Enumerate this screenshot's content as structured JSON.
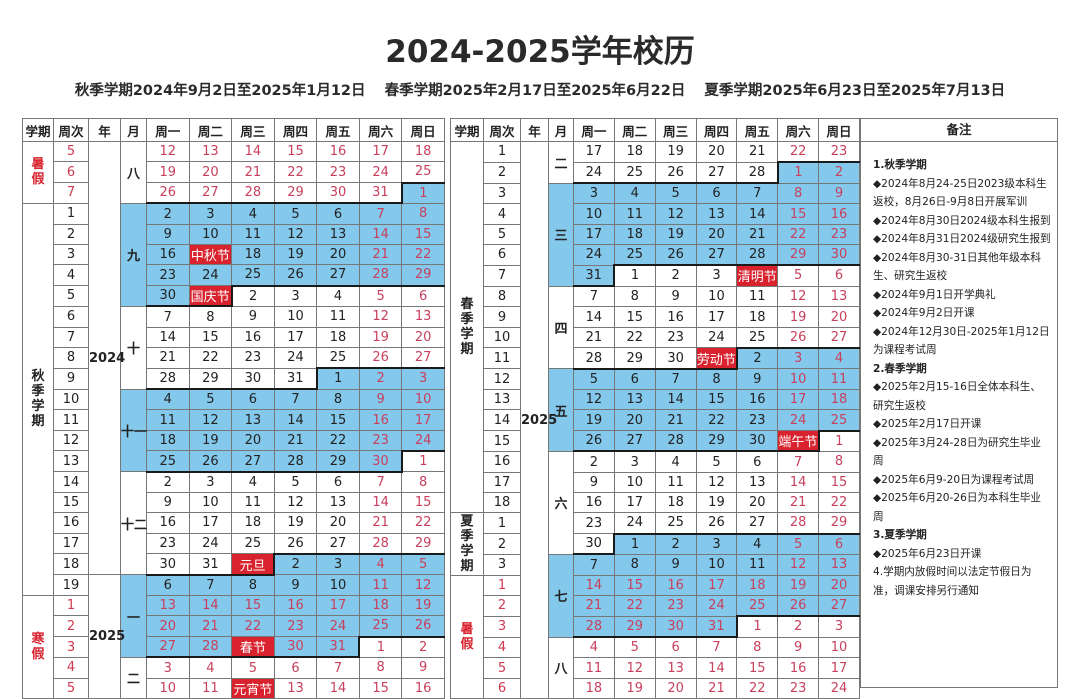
{
  "title": "2024-2025学年校历",
  "subtitle": [
    "秋季学期2024年9月2日至2025年1月12日",
    "春季学期2025年2月17日至2025年6月22日",
    "夏季学期2025年6月23日至2025年7月13日"
  ],
  "colors": {
    "shaded_month": "#84c8ec",
    "holiday": "#d8232f",
    "weekend_text": "#c8405c",
    "vacation_text": "#d03a50"
  },
  "headers": [
    "学期",
    "周次",
    "年",
    "月",
    "周一",
    "周二",
    "周三",
    "周四",
    "周五",
    "周六",
    "周日"
  ],
  "left_table": {
    "semesters": [
      {
        "label": "暑假",
        "rows": 3,
        "vacation": true
      },
      {
        "label": "秋季学期",
        "rows": 19,
        "vacation": false
      },
      {
        "label": "寒假",
        "rows": 5,
        "vacation": true
      }
    ],
    "years": [
      {
        "label": "2024",
        "rows": 21
      },
      {
        "label": "2025",
        "rows": 6
      }
    ],
    "months": [
      {
        "label": "八",
        "rows": 3,
        "shaded": false
      },
      {
        "label": "九",
        "rows": 5,
        "shaded": true
      },
      {
        "label": "十",
        "rows": 4,
        "shaded": false
      },
      {
        "label": "十一",
        "rows": 4,
        "shaded": true
      },
      {
        "label": "十二",
        "rows": 5,
        "shaded": false
      },
      {
        "label": "一",
        "rows": 4,
        "shaded": true
      },
      {
        "label": "二",
        "rows": 2,
        "shaded": false
      }
    ],
    "weeks": [
      {
        "week": "5",
        "vacation": true,
        "days": [
          12,
          13,
          14,
          15,
          16,
          17,
          18
        ]
      },
      {
        "week": "6",
        "vacation": true,
        "days": [
          19,
          20,
          21,
          22,
          23,
          24,
          25
        ]
      },
      {
        "week": "7",
        "vacation": true,
        "days": [
          26,
          27,
          28,
          29,
          30,
          31,
          1
        ]
      },
      {
        "week": "1",
        "days": [
          2,
          3,
          4,
          5,
          6,
          7,
          8
        ]
      },
      {
        "week": "2",
        "days": [
          9,
          10,
          11,
          12,
          13,
          14,
          15
        ]
      },
      {
        "week": "3",
        "days": [
          16,
          "中秋节",
          18,
          19,
          20,
          21,
          22
        ]
      },
      {
        "week": "4",
        "days": [
          23,
          24,
          25,
          26,
          27,
          28,
          29
        ]
      },
      {
        "week": "5",
        "days": [
          30,
          "国庆节",
          2,
          3,
          4,
          5,
          6
        ]
      },
      {
        "week": "6",
        "days": [
          7,
          8,
          9,
          10,
          11,
          12,
          13
        ]
      },
      {
        "week": "7",
        "days": [
          14,
          15,
          16,
          17,
          18,
          19,
          20
        ]
      },
      {
        "week": "8",
        "days": [
          21,
          22,
          23,
          24,
          25,
          26,
          27
        ]
      },
      {
        "week": "9",
        "days": [
          28,
          29,
          30,
          31,
          1,
          2,
          3
        ]
      },
      {
        "week": "10",
        "days": [
          4,
          5,
          6,
          7,
          8,
          9,
          10
        ]
      },
      {
        "week": "11",
        "days": [
          11,
          12,
          13,
          14,
          15,
          16,
          17
        ]
      },
      {
        "week": "12",
        "days": [
          18,
          19,
          20,
          21,
          22,
          23,
          24
        ]
      },
      {
        "week": "13",
        "days": [
          25,
          26,
          27,
          28,
          29,
          30,
          1
        ]
      },
      {
        "week": "14",
        "days": [
          2,
          3,
          4,
          5,
          6,
          7,
          8
        ]
      },
      {
        "week": "15",
        "days": [
          9,
          10,
          11,
          12,
          13,
          14,
          15
        ]
      },
      {
        "week": "16",
        "days": [
          16,
          17,
          18,
          19,
          20,
          21,
          22
        ]
      },
      {
        "week": "17",
        "days": [
          23,
          24,
          25,
          26,
          27,
          28,
          29
        ]
      },
      {
        "week": "18",
        "days": [
          30,
          31,
          "元旦",
          2,
          3,
          4,
          5
        ]
      },
      {
        "week": "19",
        "days": [
          6,
          7,
          8,
          9,
          10,
          11,
          12
        ]
      },
      {
        "week": "1",
        "vacation": true,
        "days": [
          13,
          14,
          15,
          16,
          17,
          18,
          19
        ]
      },
      {
        "week": "2",
        "vacation": true,
        "days": [
          20,
          21,
          22,
          23,
          24,
          25,
          26
        ]
      },
      {
        "week": "3",
        "vacation": true,
        "days": [
          27,
          28,
          "春节",
          30,
          31,
          1,
          2
        ]
      },
      {
        "week": "4",
        "vacation": true,
        "days": [
          3,
          4,
          5,
          6,
          7,
          8,
          9
        ]
      },
      {
        "week": "5",
        "vacation": true,
        "days": [
          10,
          11,
          "元宵节",
          13,
          14,
          15,
          16
        ]
      }
    ]
  },
  "right_table": {
    "semesters": [
      {
        "label": "春季学期",
        "rows": 18,
        "vacation": false
      },
      {
        "label": "夏季学期",
        "rows": 3,
        "vacation": false
      },
      {
        "label": "暑假",
        "rows": 6,
        "vacation": true
      }
    ],
    "years": [
      {
        "label": "2025",
        "rows": 27
      }
    ],
    "months": [
      {
        "label": "二",
        "rows": 2,
        "shaded": false
      },
      {
        "label": "三",
        "rows": 5,
        "shaded": true
      },
      {
        "label": "四",
        "rows": 4,
        "shaded": false
      },
      {
        "label": "五",
        "rows": 4,
        "shaded": true
      },
      {
        "label": "六",
        "rows": 5,
        "shaded": false
      },
      {
        "label": "七",
        "rows": 4,
        "shaded": true
      },
      {
        "label": "八",
        "rows": 3,
        "shaded": false
      }
    ],
    "weeks": [
      {
        "week": "1",
        "days": [
          17,
          18,
          19,
          20,
          21,
          22,
          23
        ]
      },
      {
        "week": "2",
        "days": [
          24,
          25,
          26,
          27,
          28,
          1,
          2
        ]
      },
      {
        "week": "3",
        "days": [
          3,
          4,
          5,
          6,
          7,
          8,
          9
        ]
      },
      {
        "week": "4",
        "days": [
          10,
          11,
          12,
          13,
          14,
          15,
          16
        ]
      },
      {
        "week": "5",
        "days": [
          17,
          18,
          19,
          20,
          21,
          22,
          23
        ]
      },
      {
        "week": "6",
        "days": [
          24,
          25,
          26,
          27,
          28,
          29,
          30
        ]
      },
      {
        "week": "7",
        "days": [
          31,
          1,
          2,
          3,
          "清明节",
          5,
          6
        ]
      },
      {
        "week": "8",
        "days": [
          7,
          8,
          9,
          10,
          11,
          12,
          13
        ]
      },
      {
        "week": "9",
        "days": [
          14,
          15,
          16,
          17,
          18,
          19,
          20
        ]
      },
      {
        "week": "10",
        "days": [
          21,
          22,
          23,
          24,
          25,
          26,
          27
        ]
      },
      {
        "week": "11",
        "days": [
          28,
          29,
          30,
          "劳动节",
          2,
          3,
          4
        ]
      },
      {
        "week": "12",
        "days": [
          5,
          6,
          7,
          8,
          9,
          10,
          11
        ]
      },
      {
        "week": "13",
        "days": [
          12,
          13,
          14,
          15,
          16,
          17,
          18
        ]
      },
      {
        "week": "14",
        "days": [
          19,
          20,
          21,
          22,
          23,
          24,
          25
        ]
      },
      {
        "week": "15",
        "days": [
          26,
          27,
          28,
          29,
          30,
          "端午节",
          1
        ]
      },
      {
        "week": "16",
        "days": [
          2,
          3,
          4,
          5,
          6,
          7,
          8
        ]
      },
      {
        "week": "17",
        "days": [
          9,
          10,
          11,
          12,
          13,
          14,
          15
        ]
      },
      {
        "week": "18",
        "days": [
          16,
          17,
          18,
          19,
          20,
          21,
          22
        ]
      },
      {
        "week": "1",
        "days": [
          23,
          24,
          25,
          26,
          27,
          28,
          29
        ]
      },
      {
        "week": "2",
        "days": [
          30,
          1,
          2,
          3,
          4,
          5,
          6
        ]
      },
      {
        "week": "3",
        "days": [
          7,
          8,
          9,
          10,
          11,
          12,
          13
        ]
      },
      {
        "week": "1",
        "vacation": true,
        "days": [
          14,
          15,
          16,
          17,
          18,
          19,
          20
        ]
      },
      {
        "week": "2",
        "vacation": true,
        "days": [
          21,
          22,
          23,
          24,
          25,
          26,
          27
        ]
      },
      {
        "week": "3",
        "vacation": true,
        "days": [
          28,
          29,
          30,
          31,
          1,
          2,
          3
        ]
      },
      {
        "week": "4",
        "vacation": true,
        "days": [
          4,
          5,
          6,
          7,
          8,
          9,
          10
        ]
      },
      {
        "week": "5",
        "vacation": true,
        "days": [
          11,
          12,
          13,
          14,
          15,
          16,
          17
        ]
      },
      {
        "week": "6",
        "vacation": true,
        "days": [
          18,
          19,
          20,
          21,
          22,
          23,
          24
        ]
      }
    ]
  },
  "notes": {
    "header": "备注",
    "lines": [
      {
        "type": "h",
        "text": "1.秋季学期"
      },
      {
        "type": "b",
        "text": "◆2024年8月24-25日2023级本科生返校，8月26日-9月8日开展军训"
      },
      {
        "type": "b",
        "text": "◆2024年8月30日2024级本科生报到"
      },
      {
        "type": "b",
        "text": "◆2024年8月31日2024级研究生报到"
      },
      {
        "type": "b",
        "text": "◆2024年8月30-31日其他年级本科生、研究生返校"
      },
      {
        "type": "b",
        "text": "◆2024年9月1日开学典礼"
      },
      {
        "type": "b",
        "text": "◆2024年9月2日开课"
      },
      {
        "type": "b",
        "text": "◆2024年12月30日-2025年1月12日为课程考试周"
      },
      {
        "type": "h",
        "text": "2.春季学期"
      },
      {
        "type": "b",
        "text": "◆2025年2月15-16日全体本科生、研究生返校"
      },
      {
        "type": "b",
        "text": "◆2025年2月17日开课"
      },
      {
        "type": "b",
        "text": "◆2025年3月24-28日为研究生毕业周"
      },
      {
        "type": "b",
        "text": "◆2025年6月9-20日为课程考试周"
      },
      {
        "type": "b",
        "text": "◆2025年6月20-26日为本科生毕业周"
      },
      {
        "type": "h",
        "text": "3.夏季学期"
      },
      {
        "type": "b",
        "text": "◆2025年6月23日开课"
      },
      {
        "type": "p",
        "text": "4.学期内放假时间以法定节假日为准，调课安排另行通知"
      }
    ]
  }
}
